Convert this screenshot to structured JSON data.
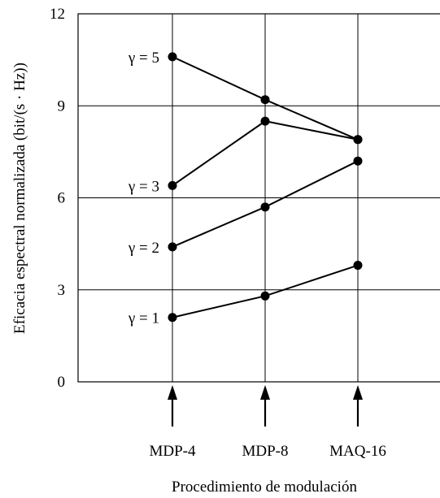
{
  "chart_data": {
    "type": "line",
    "categories": [
      "MDP-4",
      "MDP-8",
      "MAQ-16"
    ],
    "xlabel": "Procedimiento de modulación",
    "ylabel": "Eficacia espectral normalizada (bit/(s · Hz))",
    "ylim": [
      0,
      12
    ],
    "yticks": [
      "0",
      "3",
      "6",
      "9",
      "12"
    ],
    "grid": true,
    "series": [
      {
        "name": "γ = 1",
        "values": [
          2.1,
          2.8,
          3.8
        ]
      },
      {
        "name": "γ = 2",
        "values": [
          4.4,
          5.7,
          7.2
        ]
      },
      {
        "name": "γ = 3",
        "values": [
          6.4,
          8.5,
          7.9
        ]
      },
      {
        "name": "γ = 5",
        "values": [
          10.6,
          9.2,
          7.9
        ]
      }
    ]
  }
}
